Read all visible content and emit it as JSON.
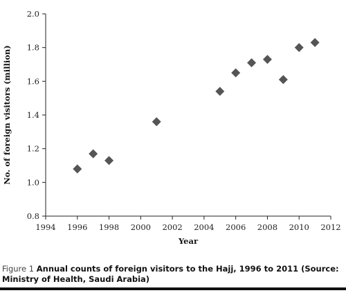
{
  "chart_data": {
    "type": "scatter",
    "xlabel": "Year",
    "ylabel": "No. of foreign visitors (million)",
    "xlim": [
      1994,
      2012
    ],
    "ylim": [
      0.8,
      2.0
    ],
    "xticks": [
      "1994",
      "1996",
      "1998",
      "2000",
      "2002",
      "2004",
      "2006",
      "2008",
      "2010",
      "2012"
    ],
    "yticks": [
      "0.8",
      "1.0",
      "1.2",
      "1.4",
      "1.6",
      "1.8",
      "2.0"
    ],
    "grid": false,
    "marker": "diamond",
    "marker_color": "#555555",
    "points": [
      {
        "x": 1996,
        "y": 1.08
      },
      {
        "x": 1997,
        "y": 1.17
      },
      {
        "x": 1998,
        "y": 1.13
      },
      {
        "x": 2001,
        "y": 1.36
      },
      {
        "x": 2005,
        "y": 1.54
      },
      {
        "x": 2006,
        "y": 1.65
      },
      {
        "x": 2007,
        "y": 1.71
      },
      {
        "x": 2008,
        "y": 1.73
      },
      {
        "x": 2009,
        "y": 1.61
      },
      {
        "x": 2010,
        "y": 1.8
      },
      {
        "x": 2011,
        "y": 1.83
      }
    ]
  },
  "caption": {
    "label": "Figure 1",
    "text": "Annual counts of foreign visitors to the Hajj, 1996 to 2011 (Source: Ministry of Health, Saudi Arabia)"
  }
}
